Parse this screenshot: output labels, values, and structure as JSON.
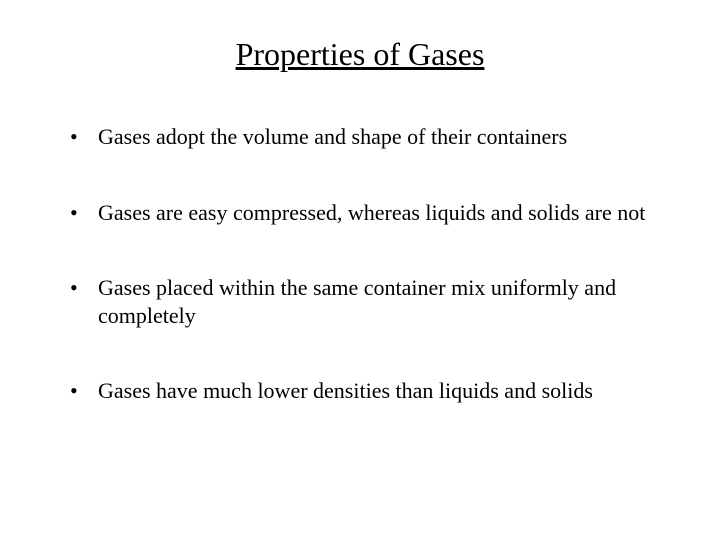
{
  "slide": {
    "title": "Properties of Gases",
    "bullets": [
      "Gases adopt the volume and shape of their containers",
      "Gases are easy compressed, whereas liquids and solids are not",
      "Gases placed within the same container mix uniformly and completely",
      "Gases have much lower densities than liquids and solids"
    ],
    "background_color": "#ffffff",
    "text_color": "#000000",
    "title_fontsize": 32,
    "body_fontsize": 22,
    "font_family": "Times New Roman"
  }
}
